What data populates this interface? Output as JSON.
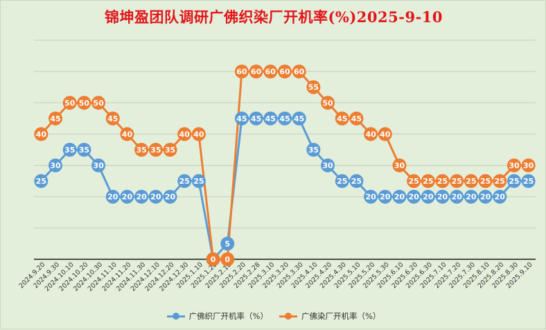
{
  "chart_data": {
    "type": "line",
    "title": "锦坤盈团队调研广佛织染厂开机率(%)2025-9-10",
    "xlabel": "",
    "ylabel": "",
    "ylim": [
      0,
      70
    ],
    "grid": true,
    "legend": "bottom",
    "categories": [
      "2024.9.20",
      "2024.9.30",
      "2024.10.10",
      "2024.10.20",
      "2024.10.30",
      "2024.11.10",
      "2024.11.20",
      "2024.11.30",
      "2024.12.10",
      "2024.12.20",
      "2024.12.30",
      "2025.1.10",
      "2025.1.20",
      "2025.2.10",
      "2025.2.20",
      "2025.2.28",
      "2025.3.10",
      "2025.3.20",
      "2025.3.30",
      "2025.4.10",
      "2025.4.20",
      "2025.4.30",
      "2025.5.10",
      "2025.5.20",
      "2025.5.30",
      "2025.6.10",
      "2025.6.20",
      "2025.6.30",
      "2025.7.10",
      "2025.7.20",
      "2025.7.30",
      "2025.8.10",
      "2025.8.20",
      "2025.8.30",
      "2025.9.10"
    ],
    "series": [
      {
        "name": "广佛织厂开机率（%）",
        "color": "#5b9bd5",
        "values": [
          25,
          30,
          35,
          35,
          30,
          20,
          20,
          20,
          20,
          20,
          25,
          25,
          0,
          5,
          45,
          45,
          45,
          45,
          45,
          35,
          30,
          25,
          25,
          20,
          20,
          20,
          20,
          20,
          20,
          20,
          20,
          20,
          20,
          25,
          25
        ]
      },
      {
        "name": "广佛染厂开机率（%）",
        "color": "#ed7d31",
        "values": [
          40,
          45,
          50,
          50,
          50,
          45,
          40,
          35,
          35,
          35,
          40,
          40,
          0,
          0,
          60,
          60,
          60,
          60,
          60,
          55,
          50,
          45,
          45,
          40,
          40,
          30,
          25,
          25,
          25,
          25,
          25,
          25,
          25,
          30,
          30
        ]
      }
    ]
  }
}
